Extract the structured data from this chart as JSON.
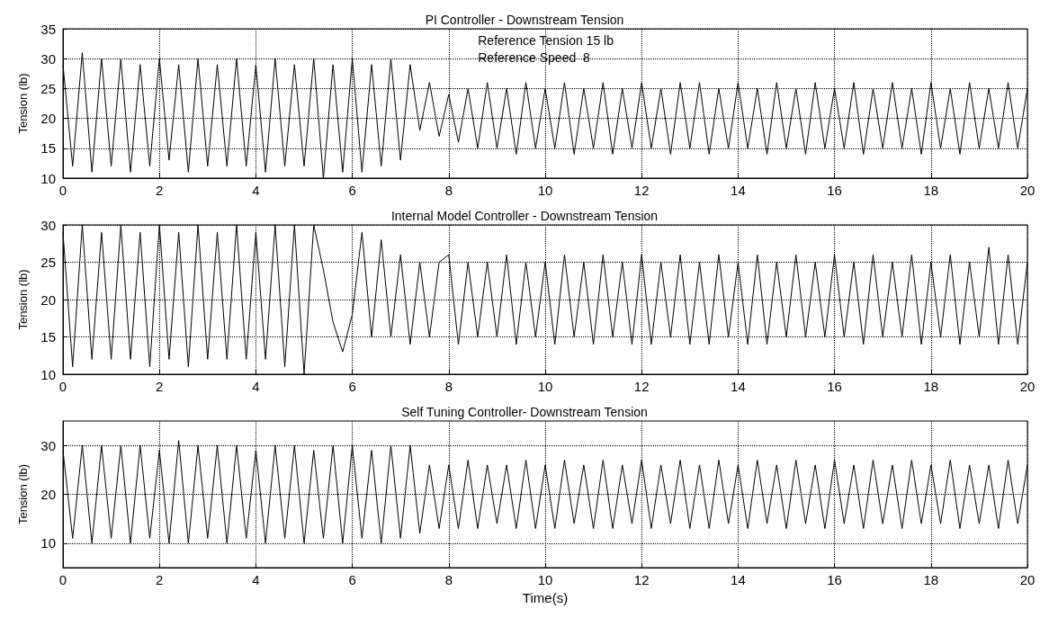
{
  "chart_data": [
    {
      "type": "line",
      "title": "PI Controller - Downstream Tension",
      "ylabel": "Tension (lb)",
      "annotations": [
        "Reference Tension 15 lb",
        "Reference Speed  8"
      ],
      "grid": true,
      "marker": "none",
      "line_style": "solid",
      "xlim": [
        0,
        20
      ],
      "xticks": [
        0,
        2,
        4,
        6,
        8,
        10,
        12,
        14,
        16,
        18,
        20
      ],
      "ylim": [
        10,
        35
      ],
      "yticks": [
        10,
        15,
        20,
        25,
        30,
        35
      ],
      "x": [
        0,
        0.2,
        0.4,
        0.6,
        0.8,
        1,
        1.2,
        1.4,
        1.6,
        1.8,
        2,
        2.2,
        2.4,
        2.6,
        2.8,
        3,
        3.2,
        3.4,
        3.6,
        3.8,
        4,
        4.2,
        4.4,
        4.6,
        4.8,
        5,
        5.2,
        5.4,
        5.6,
        5.8,
        6,
        6.2,
        6.4,
        6.6,
        6.8,
        7,
        7.2,
        7.4,
        7.6,
        7.8,
        8,
        8.2,
        8.4,
        8.6,
        8.8,
        9,
        9.2,
        9.4,
        9.6,
        9.8,
        10,
        10.2,
        10.4,
        10.6,
        10.8,
        11,
        11.2,
        11.4,
        11.6,
        11.8,
        12,
        12.2,
        12.4,
        12.6,
        12.8,
        13,
        13.2,
        13.4,
        13.6,
        13.8,
        14,
        14.2,
        14.4,
        14.6,
        14.8,
        15,
        15.2,
        15.4,
        15.6,
        15.8,
        16,
        16.2,
        16.4,
        16.6,
        16.8,
        17,
        17.2,
        17.4,
        17.6,
        17.8,
        18,
        18.2,
        18.4,
        18.6,
        18.8,
        19,
        19.2,
        19.4,
        19.6,
        19.8,
        20
      ],
      "series": [
        {
          "color": "#000000",
          "values": [
            29,
            12,
            31,
            11,
            30,
            12,
            30,
            11,
            29,
            12,
            30,
            13,
            29,
            11,
            30,
            12,
            29,
            12,
            30,
            12,
            29,
            11,
            30,
            12,
            29,
            12,
            30,
            10,
            29,
            11,
            30,
            11,
            29,
            12,
            30,
            13,
            29,
            18,
            26,
            17,
            24,
            16,
            25,
            15,
            26,
            15,
            25,
            14,
            26,
            15,
            25,
            15,
            26,
            14,
            25,
            15,
            26,
            14,
            25,
            15,
            26,
            15,
            25,
            14,
            26,
            15,
            26,
            14,
            25,
            15,
            26,
            15,
            25,
            14,
            26,
            15,
            25,
            14,
            26,
            15,
            25,
            15,
            26,
            14,
            25,
            15,
            26,
            15,
            25,
            14,
            26,
            15,
            25,
            14,
            26,
            15,
            25,
            15,
            26,
            15,
            25
          ]
        }
      ]
    },
    {
      "type": "line",
      "title": "Internal Model Controller - Downstream Tension",
      "ylabel": "Tension (lb)",
      "grid": true,
      "marker": "none",
      "line_style": "solid",
      "xlim": [
        0,
        20
      ],
      "xticks": [
        0,
        2,
        4,
        6,
        8,
        10,
        12,
        14,
        16,
        18,
        20
      ],
      "ylim": [
        10,
        30
      ],
      "yticks": [
        10,
        15,
        20,
        25,
        30
      ],
      "x": [
        0,
        0.2,
        0.4,
        0.6,
        0.8,
        1,
        1.2,
        1.4,
        1.6,
        1.8,
        2,
        2.2,
        2.4,
        2.6,
        2.8,
        3,
        3.2,
        3.4,
        3.6,
        3.8,
        4,
        4.2,
        4.4,
        4.6,
        4.8,
        5,
        5.2,
        5.4,
        5.6,
        5.8,
        6,
        6.2,
        6.4,
        6.6,
        6.8,
        7,
        7.2,
        7.4,
        7.6,
        7.8,
        8,
        8.2,
        8.4,
        8.6,
        8.8,
        9,
        9.2,
        9.4,
        9.6,
        9.8,
        10,
        10.2,
        10.4,
        10.6,
        10.8,
        11,
        11.2,
        11.4,
        11.6,
        11.8,
        12,
        12.2,
        12.4,
        12.6,
        12.8,
        13,
        13.2,
        13.4,
        13.6,
        13.8,
        14,
        14.2,
        14.4,
        14.6,
        14.8,
        15,
        15.2,
        15.4,
        15.6,
        15.8,
        16,
        16.2,
        16.4,
        16.6,
        16.8,
        17,
        17.2,
        17.4,
        17.6,
        17.8,
        18,
        18.2,
        18.4,
        18.6,
        18.8,
        19,
        19.2,
        19.4,
        19.6,
        19.8,
        20
      ],
      "series": [
        {
          "color": "#000000",
          "values": [
            29,
            11,
            30,
            12,
            29,
            12,
            30,
            12,
            29,
            11,
            30,
            12,
            29,
            11,
            30,
            12,
            29,
            12,
            30,
            12,
            29,
            12,
            30,
            11,
            30,
            10,
            30,
            24,
            17,
            13,
            18,
            29,
            15,
            28,
            15,
            26,
            14,
            25,
            15,
            25,
            26,
            14,
            25,
            15,
            25,
            15,
            26,
            14,
            25,
            15,
            25,
            14,
            26,
            15,
            25,
            14,
            26,
            15,
            25,
            14,
            26,
            14,
            25,
            15,
            26,
            14,
            25,
            14,
            26,
            15,
            25,
            14,
            26,
            14,
            25,
            15,
            26,
            15,
            25,
            15,
            26,
            15,
            25,
            14,
            26,
            15,
            25,
            15,
            26,
            14,
            25,
            15,
            26,
            14,
            25,
            15,
            27,
            14,
            26,
            14,
            25
          ]
        }
      ]
    },
    {
      "type": "line",
      "title": "Self Tuning Controller- Downstream Tension",
      "xlabel": "Time(s)",
      "ylabel": "Tension (lb)",
      "grid": true,
      "marker": "none",
      "line_style": "solid",
      "xlim": [
        0,
        20
      ],
      "xticks": [
        0,
        2,
        4,
        6,
        8,
        10,
        12,
        14,
        16,
        18,
        20
      ],
      "ylim": [
        5,
        35
      ],
      "yticks": [
        10,
        20,
        30
      ],
      "x": [
        0,
        0.2,
        0.4,
        0.6,
        0.8,
        1,
        1.2,
        1.4,
        1.6,
        1.8,
        2,
        2.2,
        2.4,
        2.6,
        2.8,
        3,
        3.2,
        3.4,
        3.6,
        3.8,
        4,
        4.2,
        4.4,
        4.6,
        4.8,
        5,
        5.2,
        5.4,
        5.6,
        5.8,
        6,
        6.2,
        6.4,
        6.6,
        6.8,
        7,
        7.2,
        7.4,
        7.6,
        7.8,
        8,
        8.2,
        8.4,
        8.6,
        8.8,
        9,
        9.2,
        9.4,
        9.6,
        9.8,
        10,
        10.2,
        10.4,
        10.6,
        10.8,
        11,
        11.2,
        11.4,
        11.6,
        11.8,
        12,
        12.2,
        12.4,
        12.6,
        12.8,
        13,
        13.2,
        13.4,
        13.6,
        13.8,
        14,
        14.2,
        14.4,
        14.6,
        14.8,
        15,
        15.2,
        15.4,
        15.6,
        15.8,
        16,
        16.2,
        16.4,
        16.6,
        16.8,
        17,
        17.2,
        17.4,
        17.6,
        17.8,
        18,
        18.2,
        18.4,
        18.6,
        18.8,
        19,
        19.2,
        19.4,
        19.6,
        19.8,
        20
      ],
      "series": [
        {
          "color": "#000000",
          "values": [
            29,
            11,
            30,
            10,
            30,
            11,
            30,
            10,
            30,
            11,
            29,
            10,
            31,
            10,
            30,
            11,
            30,
            10,
            30,
            11,
            29,
            10,
            30,
            11,
            30,
            10,
            29,
            11,
            30,
            10,
            30,
            11,
            29,
            10,
            30,
            11,
            30,
            12,
            26,
            13,
            26,
            13,
            27,
            13,
            26,
            14,
            26,
            13,
            27,
            13,
            26,
            13,
            27,
            14,
            26,
            13,
            27,
            13,
            26,
            14,
            27,
            13,
            26,
            14,
            27,
            13,
            26,
            13,
            27,
            14,
            26,
            13,
            27,
            14,
            26,
            13,
            27,
            14,
            26,
            13,
            27,
            14,
            26,
            13,
            27,
            14,
            26,
            13,
            27,
            14,
            26,
            14,
            27,
            13,
            26,
            14,
            26,
            13,
            27,
            14,
            26
          ]
        }
      ]
    }
  ]
}
